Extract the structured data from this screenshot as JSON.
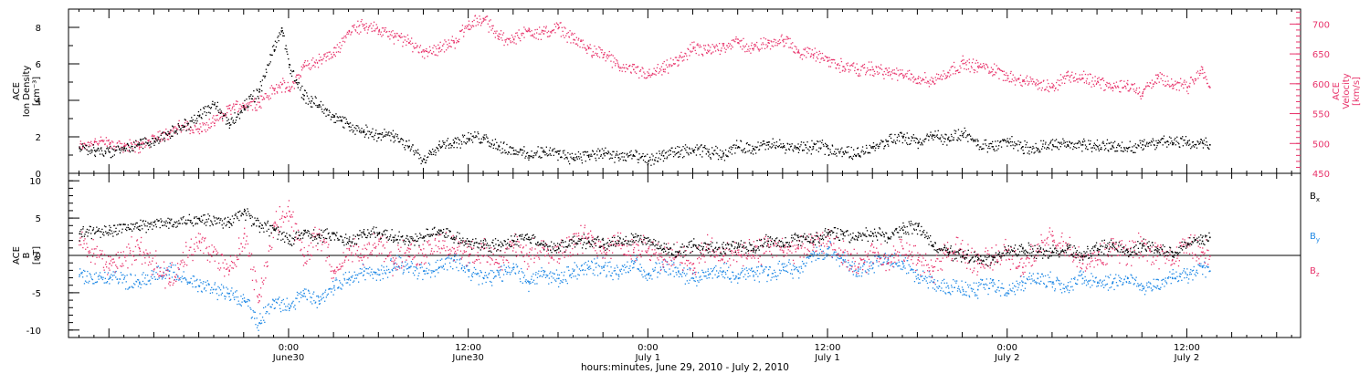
{
  "chart_data": [
    {
      "type": "scatter",
      "panel": "top",
      "ylabel_left": [
        "ACE",
        "Ion Density",
        "[cm⁻³]"
      ],
      "ylabel_right": [
        "ACE",
        "Velocity",
        "[km/s]"
      ],
      "ylim": [
        0,
        9
      ],
      "yticks": [
        "0",
        "2",
        "4",
        "6",
        "8"
      ],
      "y2lim": [
        450,
        725
      ],
      "y2ticks": [
        "450",
        "500",
        "550",
        "600",
        "650",
        "700"
      ],
      "grid": false,
      "series": [
        {
          "name": "ACE Ion Density",
          "axis": "left",
          "color": "#000000",
          "x": [
            -14,
            -13,
            -12,
            -11,
            -10,
            -9,
            -8,
            -7,
            -6,
            -5,
            -4,
            -3,
            -2,
            -1,
            -0.5,
            0,
            0.5,
            1,
            1.5,
            2,
            2.5,
            3,
            3.5,
            4,
            5,
            6,
            7,
            8,
            9,
            10,
            11,
            12,
            13,
            14,
            15,
            16,
            17,
            18,
            19,
            20,
            21,
            22,
            23,
            24,
            25,
            26,
            27,
            28,
            29,
            30,
            31,
            32,
            33,
            34,
            35,
            36,
            37,
            38,
            39,
            40,
            41,
            42,
            43,
            44,
            45,
            46,
            47,
            48,
            49,
            50,
            51,
            52,
            53,
            54,
            55,
            56,
            57,
            58,
            59,
            60,
            61,
            61.5
          ],
          "y": [
            1.4,
            1.3,
            1.2,
            1.4,
            1.6,
            1.8,
            2.2,
            2.6,
            3.2,
            3.8,
            2.8,
            3.6,
            4.5,
            6.8,
            8.0,
            6.0,
            5.0,
            4.3,
            4.0,
            3.8,
            3.5,
            3.2,
            2.9,
            2.6,
            2.3,
            2.2,
            2.0,
            1.5,
            0.8,
            1.6,
            1.7,
            1.9,
            2.0,
            1.5,
            1.3,
            1.0,
            1.2,
            1.1,
            0.9,
            1.0,
            1.1,
            0.9,
            1.0,
            0.7,
            1.0,
            1.2,
            1.3,
            1.2,
            1.1,
            1.5,
            1.4,
            1.6,
            1.5,
            1.4,
            1.5,
            1.4,
            1.2,
            1.1,
            1.5,
            1.8,
            2.0,
            1.7,
            2.1,
            1.9,
            2.2,
            1.6,
            1.5,
            1.8,
            1.5,
            1.4,
            1.6,
            1.6,
            1.6,
            1.5,
            1.5,
            1.4,
            1.6,
            1.7,
            1.7,
            1.7,
            1.7,
            1.6
          ]
        },
        {
          "name": "ACE Velocity",
          "axis": "right",
          "color": "#e8336b",
          "x": [
            -14,
            -13,
            -12,
            -11,
            -10,
            -9,
            -8,
            -7,
            -6,
            -5,
            -4,
            -3,
            -2,
            -1,
            -0.5,
            0,
            1,
            2,
            3,
            4,
            5,
            6,
            7,
            8,
            9,
            10,
            11,
            12,
            13,
            14,
            15,
            16,
            17,
            18,
            19,
            20,
            21,
            22,
            23,
            24,
            25,
            26,
            27,
            28,
            29,
            30,
            31,
            32,
            33,
            34,
            35,
            36,
            37,
            38,
            39,
            40,
            41,
            42,
            43,
            44,
            45,
            46,
            47,
            48,
            49,
            50,
            51,
            52,
            53,
            54,
            55,
            56,
            57,
            58,
            59,
            60,
            61,
            61.5
          ],
          "y": [
            495,
            505,
            500,
            498,
            495,
            510,
            520,
            530,
            525,
            535,
            560,
            565,
            570,
            590,
            600,
            590,
            630,
            640,
            650,
            690,
            700,
            690,
            680,
            670,
            655,
            660,
            670,
            700,
            710,
            680,
            675,
            690,
            685,
            695,
            675,
            660,
            650,
            630,
            625,
            615,
            625,
            640,
            660,
            655,
            665,
            670,
            660,
            670,
            675,
            655,
            650,
            640,
            630,
            625,
            625,
            620,
            615,
            610,
            605,
            620,
            635,
            630,
            625,
            615,
            605,
            600,
            595,
            615,
            610,
            605,
            595,
            600,
            585,
            610,
            600,
            595,
            625,
            595
          ]
        }
      ]
    },
    {
      "type": "scatter",
      "panel": "bottom",
      "ylabel_left": [
        "ACE",
        "B",
        "[nT]"
      ],
      "ylim": [
        -11,
        11
      ],
      "yticks": [
        "-10",
        "-5",
        "0",
        "5",
        "10"
      ],
      "grid": false,
      "zero_line": true,
      "legend_placement": "right",
      "legend": [
        {
          "label": "B",
          "sub": "x",
          "color": "#000000"
        },
        {
          "label": "B",
          "sub": "y",
          "color": "#1e88e5"
        },
        {
          "label": "B",
          "sub": "z",
          "color": "#e8336b"
        }
      ],
      "series": [
        {
          "name": "Bx",
          "color": "#000000",
          "x": [
            -14,
            -12,
            -10,
            -8,
            -6,
            -4,
            -3,
            -2,
            -1,
            0,
            1,
            2,
            3,
            4,
            5,
            6,
            7,
            8,
            9,
            10,
            11,
            12,
            13,
            14,
            15,
            16,
            17,
            18,
            19,
            20,
            21,
            22,
            23,
            24,
            25,
            26,
            27,
            28,
            29,
            30,
            31,
            32,
            33,
            34,
            35,
            36,
            37,
            38,
            39,
            40,
            41,
            42,
            43,
            44,
            45,
            46,
            47,
            48,
            49,
            50,
            51,
            52,
            53,
            54,
            55,
            56,
            57,
            58,
            59,
            60,
            61,
            61.5
          ],
          "y": [
            3.0,
            3.5,
            4.0,
            4.5,
            5.0,
            4.5,
            6.0,
            4.0,
            3.5,
            2.0,
            3.0,
            2.5,
            3.0,
            2.0,
            3.0,
            3.0,
            2.5,
            2.0,
            2.5,
            3.5,
            2.5,
            2.0,
            1.5,
            1.5,
            2.0,
            2.5,
            1.5,
            1.0,
            2.0,
            2.0,
            1.5,
            2.0,
            2.5,
            2.0,
            1.0,
            0.5,
            1.5,
            1.0,
            1.0,
            1.5,
            1.0,
            2.0,
            1.5,
            2.5,
            2.0,
            3.0,
            3.0,
            2.5,
            3.0,
            2.5,
            3.5,
            4.0,
            1.5,
            0.5,
            0.0,
            -0.5,
            -0.5,
            0.5,
            1.0,
            0.5,
            0.5,
            1.0,
            0.0,
            1.0,
            1.5,
            0.5,
            1.5,
            1.0,
            0.5,
            1.5,
            2.0,
            2.5
          ]
        },
        {
          "name": "By",
          "color": "#1e88e5",
          "x": [
            -14,
            -12,
            -10,
            -8,
            -6,
            -4,
            -3,
            -2,
            -1,
            0,
            1,
            2,
            3,
            4,
            5,
            6,
            7,
            8,
            9,
            10,
            11,
            12,
            13,
            14,
            15,
            16,
            17,
            18,
            19,
            20,
            21,
            22,
            23,
            24,
            25,
            26,
            27,
            28,
            29,
            30,
            31,
            32,
            33,
            34,
            35,
            36,
            37,
            38,
            39,
            40,
            41,
            42,
            43,
            44,
            45,
            46,
            47,
            48,
            49,
            50,
            51,
            52,
            53,
            54,
            55,
            56,
            57,
            58,
            59,
            60,
            61,
            61.5
          ],
          "y": [
            -2.5,
            -3.0,
            -3.5,
            -2.0,
            -4.0,
            -5.0,
            -6.0,
            -9.0,
            -6.0,
            -7.0,
            -5.0,
            -6.0,
            -4.0,
            -3.0,
            -2.0,
            -2.5,
            -1.0,
            -1.5,
            -2.0,
            -1.5,
            -0.5,
            -2.0,
            -3.0,
            -2.5,
            -1.5,
            -3.5,
            -2.5,
            -3.0,
            -2.0,
            -1.5,
            -1.5,
            -2.5,
            -1.0,
            -2.5,
            -1.5,
            -2.0,
            -3.0,
            -2.5,
            -2.0,
            -3.0,
            -2.0,
            -2.5,
            -1.5,
            -2.0,
            0.0,
            1.0,
            -0.5,
            -2.0,
            -1.0,
            -0.5,
            -1.0,
            -2.5,
            -3.5,
            -4.0,
            -4.5,
            -4.5,
            -4.0,
            -5.0,
            -3.5,
            -3.0,
            -3.5,
            -4.0,
            -3.0,
            -3.5,
            -3.5,
            -3.0,
            -4.0,
            -4.0,
            -3.0,
            -2.5,
            -1.5,
            -2.0
          ]
        },
        {
          "name": "Bz",
          "color": "#e8336b",
          "x": [
            -14,
            -12,
            -10,
            -8,
            -6,
            -4,
            -3,
            -2,
            -1,
            0,
            1,
            2,
            3,
            4,
            5,
            6,
            7,
            8,
            9,
            10,
            11,
            12,
            13,
            14,
            15,
            16,
            17,
            18,
            19,
            20,
            21,
            22,
            23,
            24,
            25,
            26,
            27,
            28,
            29,
            30,
            31,
            32,
            33,
            34,
            35,
            36,
            37,
            38,
            39,
            40,
            41,
            42,
            43,
            44,
            45,
            46,
            47,
            48,
            49,
            50,
            51,
            52,
            53,
            54,
            55,
            56,
            57,
            58,
            59,
            60,
            61,
            61.5
          ],
          "y": [
            2.0,
            -1.0,
            1.0,
            -3.0,
            2.0,
            -2.0,
            3.0,
            -6.0,
            4.0,
            6.0,
            0.0,
            3.0,
            -2.0,
            1.0,
            0.0,
            2.0,
            -1.0,
            1.0,
            0.0,
            2.0,
            1.0,
            0.0,
            1.0,
            -1.0,
            1.5,
            0.0,
            1.0,
            0.5,
            2.0,
            2.5,
            1.0,
            2.0,
            0.5,
            1.0,
            -0.5,
            0.5,
            -1.0,
            1.0,
            0.0,
            0.5,
            0.0,
            1.5,
            0.5,
            1.0,
            1.5,
            2.0,
            0.5,
            -1.5,
            0.5,
            -1.0,
            1.0,
            -0.5,
            -2.0,
            1.0,
            0.5,
            -1.0,
            0.0,
            0.5,
            -1.5,
            1.0,
            2.0,
            1.0,
            -1.0,
            -0.5,
            1.0,
            0.5,
            1.5,
            0.0,
            -0.5,
            1.5,
            0.5,
            0.0
          ]
        }
      ]
    }
  ],
  "xaxis": {
    "xlabel": "hours:minutes, June 29, 2010 - July  2, 2010",
    "xlim": [
      -14.7,
      67.6
    ],
    "major_ticks": [
      {
        "x": 0,
        "time": "0:00",
        "date": "June30"
      },
      {
        "x": 12,
        "time": "12:00",
        "date": "June30"
      },
      {
        "x": 24,
        "time": "0:00",
        "date": "July 1"
      },
      {
        "x": 36,
        "time": "12:00",
        "date": "July 1"
      },
      {
        "x": 48,
        "time": "0:00",
        "date": "July 2"
      },
      {
        "x": 60,
        "time": "12:00",
        "date": "July 2"
      }
    ]
  }
}
